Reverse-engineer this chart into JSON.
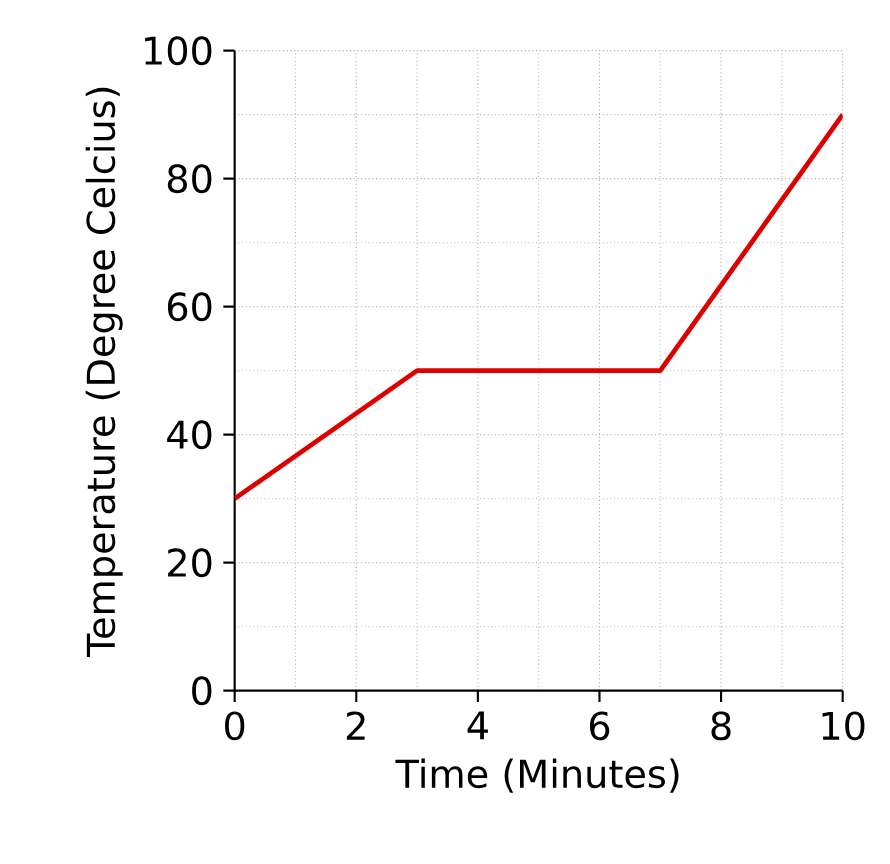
{
  "chart_data": {
    "type": "line",
    "xlabel": "Time (Minutes)",
    "ylabel": "Temperature (Degree Celcius)",
    "x": [
      0,
      3,
      7,
      10
    ],
    "series": [
      {
        "color": "#dd0000",
        "values": [
          30,
          50,
          50,
          90
        ]
      }
    ],
    "xlim": [
      0,
      10
    ],
    "ylim": [
      0,
      100
    ],
    "xticks": [
      0,
      2,
      4,
      6,
      8,
      10
    ],
    "yticks": [
      0,
      20,
      40,
      60,
      80,
      100
    ],
    "grid": true,
    "marker": "none",
    "line_style": "solid"
  }
}
